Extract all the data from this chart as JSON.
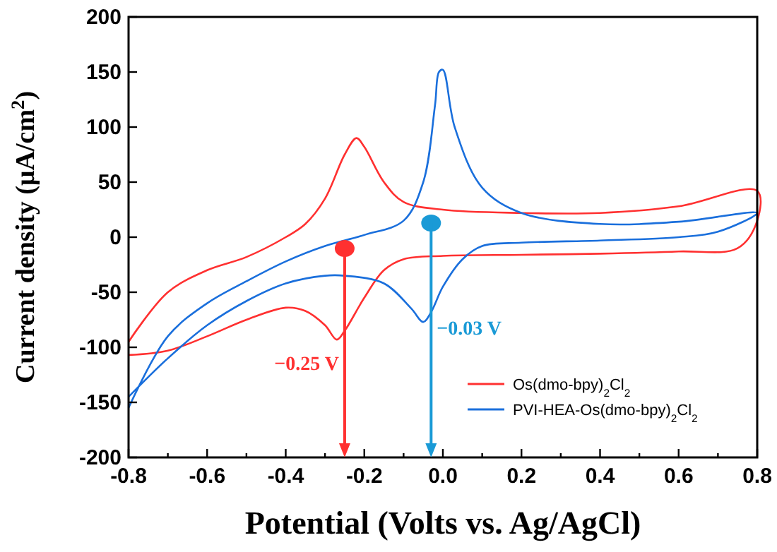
{
  "chart_data": {
    "type": "line",
    "xlabel": "Potential (Volts vs. Ag/AgCl)",
    "ylabel": "Current density (μA/cm$^{2}$)",
    "xlim": [
      -0.8,
      0.8
    ],
    "ylim": [
      -200,
      200
    ],
    "xticks": [
      -0.8,
      {
        "value": -0.7,
        "label": null
      },
      -0.6,
      {
        "value": -0.5,
        "label": null
      },
      -0.4,
      {
        "value": -0.3,
        "label": null
      },
      -0.2,
      {
        "value": -0.1,
        "label": null
      },
      {
        "value": 0,
        "label": "0.0"
      },
      {
        "value": 0.1,
        "label": null
      },
      0.2,
      {
        "value": 0.3,
        "label": null
      },
      0.4,
      {
        "value": 0.5,
        "label": null
      },
      0.6,
      {
        "value": 0.7,
        "label": null
      },
      0.8
    ],
    "yticks": [
      -200,
      -150,
      -100,
      -50,
      0,
      50,
      100,
      150,
      200
    ],
    "grid": false,
    "legend": "bottom right",
    "line_style": "solid",
    "marker": "none",
    "series": [
      {
        "name": "Os(dmo-bpy)$_{2}$Cl$_{2}$",
        "color": "#ff3030",
        "x": [
          -0.8,
          -0.7,
          -0.6,
          -0.5,
          -0.4,
          -0.35,
          -0.3,
          -0.25,
          -0.22,
          -0.2,
          -0.15,
          -0.1,
          0,
          0.2,
          0.4,
          0.6,
          0.8,
          0.8,
          0.75,
          0.6,
          0.4,
          0.2,
          0,
          -0.1,
          -0.15,
          -0.2,
          -0.25,
          -0.27,
          -0.3,
          -0.35,
          -0.4,
          -0.5,
          -0.6,
          -0.7,
          -0.8
        ],
        "values": [
          -95,
          -50,
          -30,
          -18,
          0,
          12,
          35,
          75,
          90,
          82,
          50,
          32,
          25,
          22,
          22,
          28,
          42,
          15,
          -10,
          -13,
          -15,
          -16,
          -17,
          -20,
          -30,
          -55,
          -85,
          -93,
          -80,
          -67,
          -64,
          -75,
          -90,
          -103,
          -107
        ]
      },
      {
        "name": "PVI-HEA-Os(dmo-bpy)$_{2}$Cl$_{2}$",
        "color": "#1a6fdc",
        "x": [
          -0.8,
          -0.7,
          -0.6,
          -0.5,
          -0.4,
          -0.3,
          -0.2,
          -0.1,
          -0.05,
          -0.02,
          -0.01,
          0,
          0.03,
          0.1,
          0.2,
          0.4,
          0.6,
          0.8,
          0.7,
          0.6,
          0.4,
          0.2,
          0.1,
          0.05,
          0,
          -0.03,
          -0.05,
          -0.08,
          -0.15,
          -0.25,
          -0.3,
          -0.4,
          -0.5,
          -0.6,
          -0.7,
          -0.8
        ],
        "values": [
          -155,
          -90,
          -60,
          -40,
          -22,
          -8,
          2,
          15,
          50,
          120,
          150,
          152,
          100,
          45,
          22,
          12,
          14,
          22,
          5,
          0,
          -3,
          -5,
          -8,
          -20,
          -45,
          -68,
          -77,
          -65,
          -42,
          -35,
          -35,
          -42,
          -58,
          -80,
          -110,
          -145
        ]
      }
    ],
    "ref_lines": [
      {
        "axis": "x",
        "value": -0.25,
        "label": "−0.25 V",
        "color": "#ff3030"
      },
      {
        "axis": "x",
        "value": -0.03,
        "label": "−0.03 V",
        "color": "#1a9ad6"
      }
    ]
  }
}
